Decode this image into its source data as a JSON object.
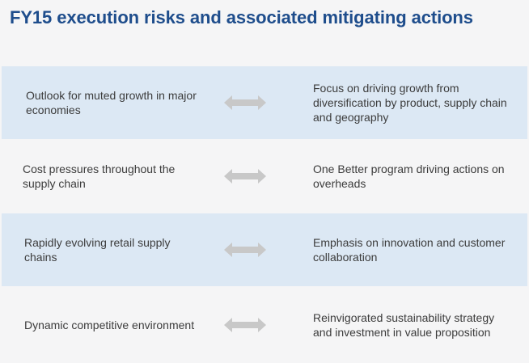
{
  "title": "FY15 execution risks and associated mitigating actions",
  "colors": {
    "title": "#1e4d8c",
    "shaded_row": "#dce8f4",
    "arrow": "#c8c8c8",
    "text": "#3c3c3c"
  },
  "rows": [
    {
      "risk": "Outlook for muted growth in major economies",
      "action": "Focus on driving growth from diversification by product, supply chain and geography",
      "icon": "double-arrow-icon"
    },
    {
      "risk": "Cost pressures throughout the supply chain",
      "action": "One Better program driving actions on overheads",
      "icon": "double-arrow-icon"
    },
    {
      "risk": "Rapidly evolving retail supply chains",
      "action": "Emphasis on innovation and customer collaboration",
      "icon": "double-arrow-icon"
    },
    {
      "risk": "Dynamic competitive environment",
      "action": "Reinvigorated sustainability strategy and investment in value proposition",
      "icon": "double-arrow-icon"
    }
  ]
}
